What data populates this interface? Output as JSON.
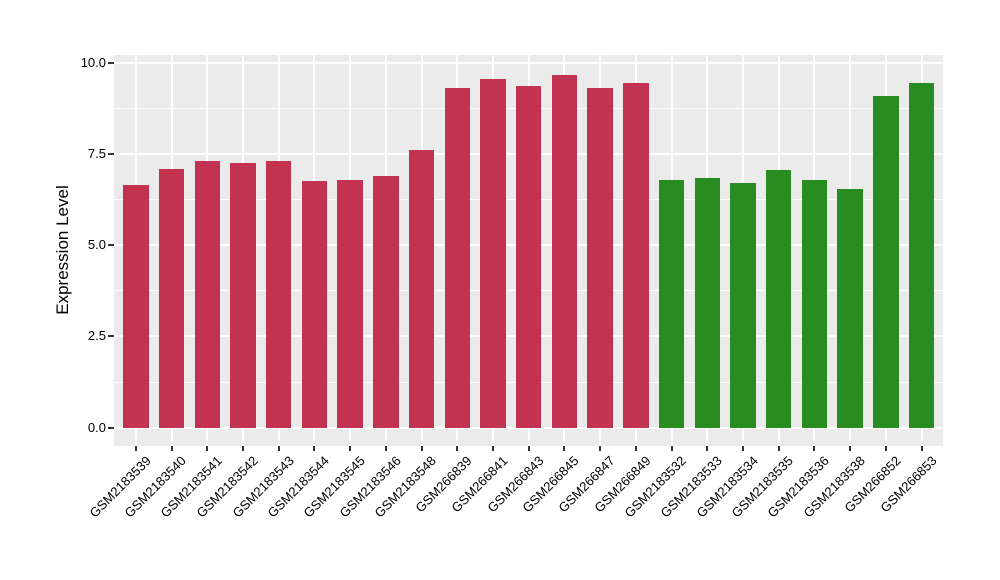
{
  "chart_data": {
    "type": "bar",
    "title": "",
    "ylabel": "Expression Level",
    "xlabel": "",
    "ylim": [
      -0.5,
      10.2
    ],
    "yticks": [
      {
        "value": 0.0,
        "label": "0.0"
      },
      {
        "value": 2.5,
        "label": "2.5"
      },
      {
        "value": 5.0,
        "label": "5.0"
      },
      {
        "value": 7.5,
        "label": "7.5"
      },
      {
        "value": 10.0,
        "label": "10.0"
      }
    ],
    "minor_gridline_step": 1.25,
    "grid": "on",
    "legend_position": "none",
    "panel_background": "#EBEBEB",
    "gridline_color": "#FFFFFF",
    "tick_color": "#333333",
    "groups": [
      {
        "name": "red-group",
        "color": "#C23351"
      },
      {
        "name": "green-group",
        "color": "#288C21"
      }
    ],
    "bars": [
      {
        "label": "GSM2183539",
        "value": 6.65,
        "group": 0
      },
      {
        "label": "GSM2183540",
        "value": 7.1,
        "group": 0
      },
      {
        "label": "GSM2183541",
        "value": 7.3,
        "group": 0
      },
      {
        "label": "GSM2183542",
        "value": 7.25,
        "group": 0
      },
      {
        "label": "GSM2183543",
        "value": 7.3,
        "group": 0
      },
      {
        "label": "GSM2183544",
        "value": 6.75,
        "group": 0
      },
      {
        "label": "GSM2183545",
        "value": 6.8,
        "group": 0
      },
      {
        "label": "GSM2183546",
        "value": 6.9,
        "group": 0
      },
      {
        "label": "GSM2183548",
        "value": 7.6,
        "group": 0
      },
      {
        "label": "GSM266839",
        "value": 9.3,
        "group": 0
      },
      {
        "label": "GSM266841",
        "value": 9.55,
        "group": 0
      },
      {
        "label": "GSM266843",
        "value": 9.35,
        "group": 0
      },
      {
        "label": "GSM266845",
        "value": 9.65,
        "group": 0
      },
      {
        "label": "GSM266847",
        "value": 9.3,
        "group": 0
      },
      {
        "label": "GSM266849",
        "value": 9.45,
        "group": 0
      },
      {
        "label": "GSM2183532",
        "value": 6.8,
        "group": 1
      },
      {
        "label": "GSM2183533",
        "value": 6.85,
        "group": 1
      },
      {
        "label": "GSM2183534",
        "value": 6.7,
        "group": 1
      },
      {
        "label": "GSM2183535",
        "value": 7.05,
        "group": 1
      },
      {
        "label": "GSM2183536",
        "value": 6.8,
        "group": 1
      },
      {
        "label": "GSM2183538",
        "value": 6.55,
        "group": 1
      },
      {
        "label": "GSM266852",
        "value": 9.1,
        "group": 1
      },
      {
        "label": "GSM266853",
        "value": 9.45,
        "group": 1
      }
    ]
  }
}
